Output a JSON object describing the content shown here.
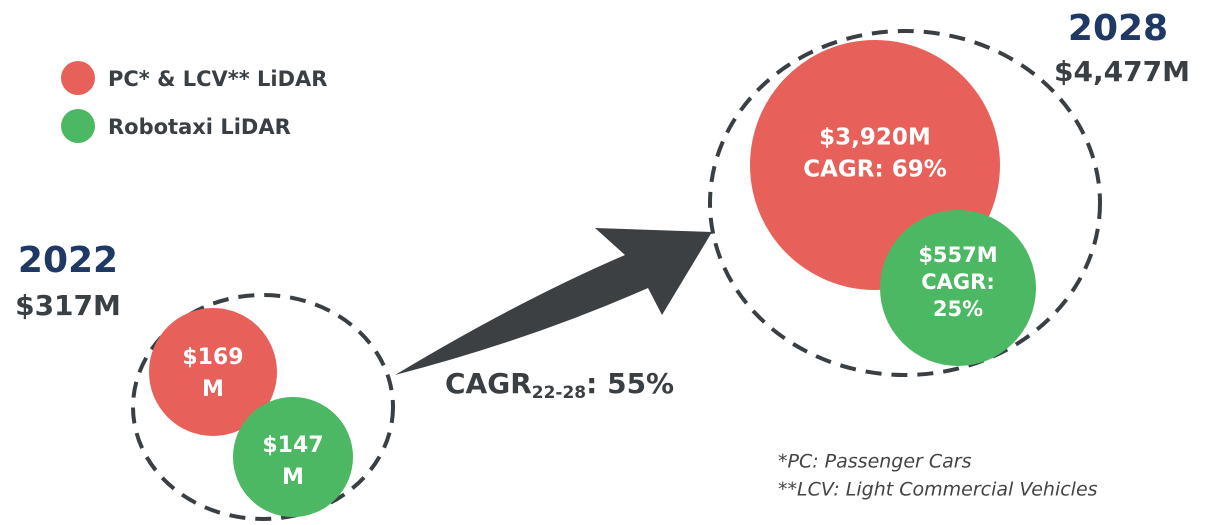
{
  "legend": [
    "PC* & LCV** LiDAR",
    "Robotaxi LiDAR"
  ],
  "years": [
    {
      "year": "2022",
      "total": "$317M",
      "segments": [
        {
          "lines": [
            "$169",
            "M"
          ]
        },
        {
          "lines": [
            "$147",
            "M"
          ]
        }
      ]
    },
    {
      "year": "2028",
      "total": "$4,477M",
      "segments": [
        {
          "lines": [
            "$3,920M",
            "CAGR: 69%"
          ]
        },
        {
          "lines": [
            "$557M",
            "CAGR:",
            "25%"
          ]
        }
      ]
    }
  ],
  "growth": {
    "label": "CAGR",
    "subscript": "22-28",
    "value": ": 55%"
  },
  "footnotes": [
    "*PC: Passenger Cars",
    "**LCV: Light Commercial Vehicles"
  ]
}
